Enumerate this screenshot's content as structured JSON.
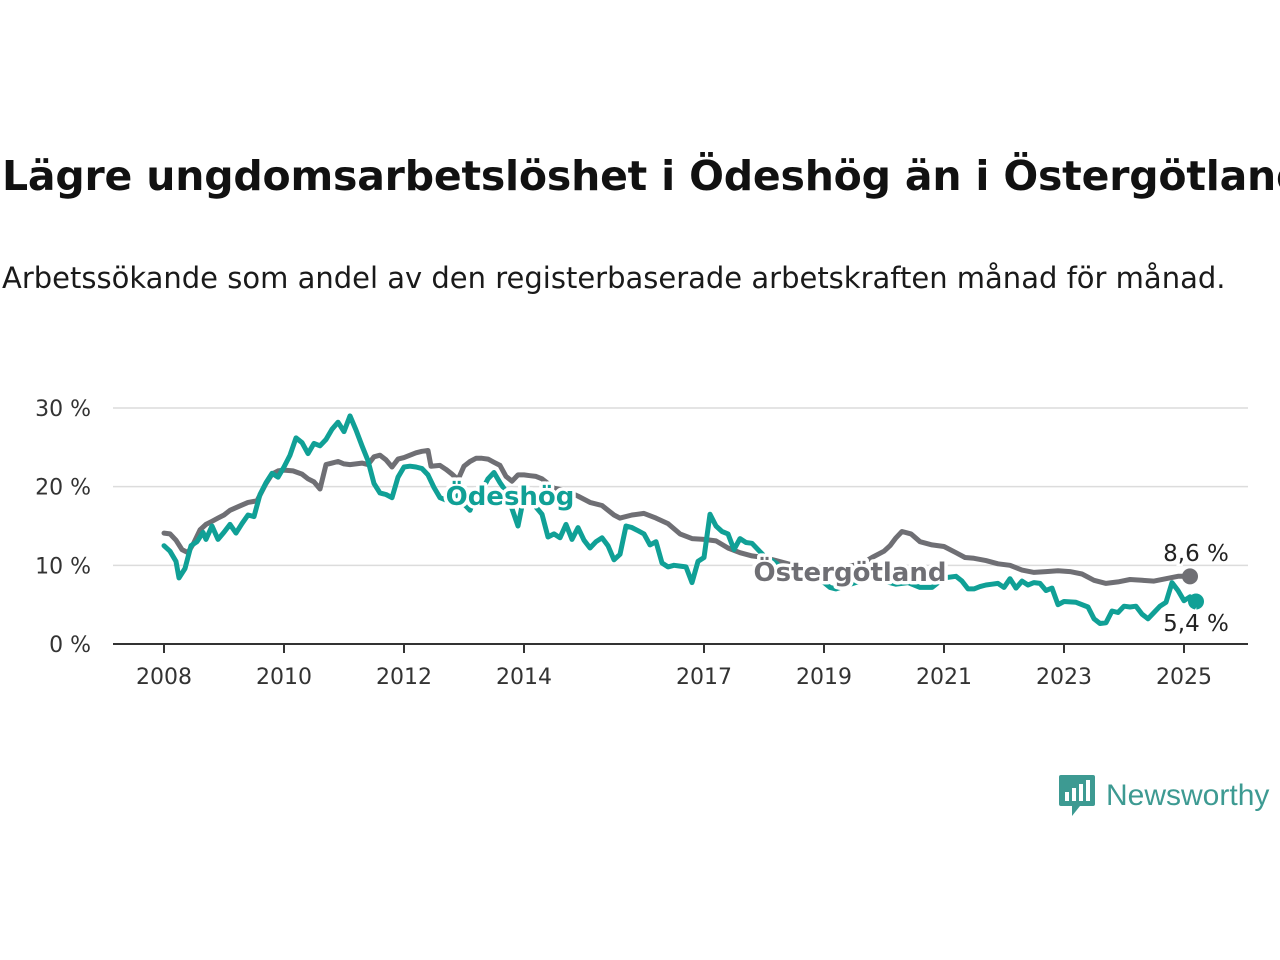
{
  "title": "Lägre ungdomsarbetslöshet i Ödeshög än i Östergötland",
  "subtitle": "Arbetssökande som andel av den registerbaserade arbetskraften månad för månad.",
  "brand": {
    "name": "Newsworthy",
    "icon": "newsworthy-logo-icon",
    "color": "#3d9a92"
  },
  "chart_data": {
    "type": "line",
    "x_range": [
      2008.0,
      2025.2
    ],
    "ylim": [
      0,
      30
    ],
    "y_ticks": [
      {
        "value": 0,
        "label": "0 %"
      },
      {
        "value": 10,
        "label": "10 %"
      },
      {
        "value": 20,
        "label": "20 %"
      },
      {
        "value": 30,
        "label": "30 %"
      }
    ],
    "x_ticks": [
      {
        "value": 2008,
        "label": "2008"
      },
      {
        "value": 2010,
        "label": "2010"
      },
      {
        "value": 2012,
        "label": "2012"
      },
      {
        "value": 2014,
        "label": "2014"
      },
      {
        "value": 2017,
        "label": "2017"
      },
      {
        "value": 2019,
        "label": "2019"
      },
      {
        "value": 2021,
        "label": "2021"
      },
      {
        "value": 2023,
        "label": "2023"
      },
      {
        "value": 2025,
        "label": "2025"
      }
    ],
    "grid": "horizontal",
    "series": [
      {
        "name": "Östergötland",
        "color": "#6f6f74",
        "end_label": "8,6 %",
        "points": [
          [
            2008.0,
            14.1
          ],
          [
            2008.1,
            14.0
          ],
          [
            2008.2,
            13.2
          ],
          [
            2008.3,
            12.0
          ],
          [
            2008.4,
            11.6
          ],
          [
            2008.5,
            12.9
          ],
          [
            2008.6,
            14.5
          ],
          [
            2008.7,
            15.2
          ],
          [
            2008.8,
            15.6
          ],
          [
            2008.9,
            16.0
          ],
          [
            2009.0,
            16.4
          ],
          [
            2009.1,
            17.0
          ],
          [
            2009.25,
            17.5
          ],
          [
            2009.4,
            18.0
          ],
          [
            2009.55,
            18.2
          ],
          [
            2009.7,
            20.4
          ],
          [
            2009.8,
            21.6
          ],
          [
            2009.9,
            22.0
          ],
          [
            2010.0,
            22.1
          ],
          [
            2010.15,
            22.0
          ],
          [
            2010.3,
            21.6
          ],
          [
            2010.4,
            21.0
          ],
          [
            2010.5,
            20.6
          ],
          [
            2010.6,
            19.7
          ],
          [
            2010.7,
            22.8
          ],
          [
            2010.8,
            23.0
          ],
          [
            2010.9,
            23.2
          ],
          [
            2011.0,
            22.9
          ],
          [
            2011.1,
            22.8
          ],
          [
            2011.2,
            22.9
          ],
          [
            2011.3,
            23.0
          ],
          [
            2011.4,
            22.8
          ],
          [
            2011.5,
            23.8
          ],
          [
            2011.6,
            24.0
          ],
          [
            2011.7,
            23.4
          ],
          [
            2011.8,
            22.5
          ],
          [
            2011.9,
            23.5
          ],
          [
            2012.0,
            23.7
          ],
          [
            2012.1,
            24.0
          ],
          [
            2012.2,
            24.3
          ],
          [
            2012.3,
            24.5
          ],
          [
            2012.4,
            24.6
          ],
          [
            2012.45,
            22.6
          ],
          [
            2012.6,
            22.7
          ],
          [
            2012.7,
            22.2
          ],
          [
            2012.8,
            21.6
          ],
          [
            2012.9,
            20.9
          ],
          [
            2013.0,
            22.6
          ],
          [
            2013.1,
            23.2
          ],
          [
            2013.2,
            23.6
          ],
          [
            2013.3,
            23.6
          ],
          [
            2013.4,
            23.5
          ],
          [
            2013.5,
            23.1
          ],
          [
            2013.6,
            22.7
          ],
          [
            2013.7,
            21.3
          ],
          [
            2013.8,
            20.7
          ],
          [
            2013.9,
            21.5
          ],
          [
            2014.0,
            21.5
          ],
          [
            2014.1,
            21.4
          ],
          [
            2014.2,
            21.3
          ],
          [
            2014.3,
            21.0
          ],
          [
            2014.5,
            19.8
          ],
          [
            2014.7,
            19.5
          ],
          [
            2014.9,
            18.8
          ],
          [
            2015.1,
            18.0
          ],
          [
            2015.3,
            17.6
          ],
          [
            2015.5,
            16.4
          ],
          [
            2015.6,
            16.0
          ],
          [
            2015.8,
            16.4
          ],
          [
            2016.0,
            16.6
          ],
          [
            2016.2,
            16.0
          ],
          [
            2016.4,
            15.3
          ],
          [
            2016.6,
            14.0
          ],
          [
            2016.8,
            13.4
          ],
          [
            2017.0,
            13.3
          ],
          [
            2017.2,
            13.1
          ],
          [
            2017.4,
            12.2
          ],
          [
            2017.6,
            11.6
          ],
          [
            2017.8,
            11.2
          ],
          [
            2018.0,
            11.0
          ],
          [
            2018.2,
            10.6
          ],
          [
            2018.4,
            10.2
          ],
          [
            2018.6,
            9.8
          ],
          [
            2018.8,
            9.4
          ],
          [
            2019.0,
            9.3
          ],
          [
            2019.2,
            9.6
          ],
          [
            2019.4,
            9.9
          ],
          [
            2019.6,
            10.1
          ],
          [
            2019.8,
            11.0
          ],
          [
            2020.0,
            11.8
          ],
          [
            2020.1,
            12.5
          ],
          [
            2020.2,
            13.5
          ],
          [
            2020.3,
            14.3
          ],
          [
            2020.45,
            14.0
          ],
          [
            2020.6,
            13.0
          ],
          [
            2020.8,
            12.6
          ],
          [
            2021.0,
            12.4
          ],
          [
            2021.2,
            11.6
          ],
          [
            2021.35,
            11.0
          ],
          [
            2021.5,
            10.9
          ],
          [
            2021.7,
            10.6
          ],
          [
            2021.9,
            10.2
          ],
          [
            2022.1,
            10.0
          ],
          [
            2022.3,
            9.4
          ],
          [
            2022.5,
            9.1
          ],
          [
            2022.7,
            9.2
          ],
          [
            2022.9,
            9.3
          ],
          [
            2023.1,
            9.2
          ],
          [
            2023.3,
            8.9
          ],
          [
            2023.5,
            8.1
          ],
          [
            2023.7,
            7.7
          ],
          [
            2023.9,
            7.9
          ],
          [
            2024.1,
            8.2
          ],
          [
            2024.3,
            8.1
          ],
          [
            2024.5,
            8.0
          ],
          [
            2024.7,
            8.3
          ],
          [
            2024.9,
            8.6
          ],
          [
            2025.1,
            8.6
          ]
        ]
      },
      {
        "name": "Ödeshög",
        "color": "#10a096",
        "end_label": "5,4 %",
        "points": [
          [
            2008.0,
            12.5
          ],
          [
            2008.1,
            11.8
          ],
          [
            2008.2,
            10.5
          ],
          [
            2008.25,
            8.4
          ],
          [
            2008.35,
            9.6
          ],
          [
            2008.45,
            12.5
          ],
          [
            2008.55,
            13.0
          ],
          [
            2008.65,
            14.2
          ],
          [
            2008.7,
            13.3
          ],
          [
            2008.8,
            15.0
          ],
          [
            2008.9,
            13.3
          ],
          [
            2009.0,
            14.2
          ],
          [
            2009.1,
            15.2
          ],
          [
            2009.2,
            14.1
          ],
          [
            2009.3,
            15.3
          ],
          [
            2009.4,
            16.4
          ],
          [
            2009.5,
            16.2
          ],
          [
            2009.6,
            19.0
          ],
          [
            2009.7,
            20.5
          ],
          [
            2009.8,
            21.7
          ],
          [
            2009.9,
            21.2
          ],
          [
            2010.0,
            22.5
          ],
          [
            2010.1,
            24.0
          ],
          [
            2010.2,
            26.2
          ],
          [
            2010.3,
            25.6
          ],
          [
            2010.4,
            24.2
          ],
          [
            2010.5,
            25.5
          ],
          [
            2010.6,
            25.2
          ],
          [
            2010.7,
            26.0
          ],
          [
            2010.8,
            27.3
          ],
          [
            2010.9,
            28.2
          ],
          [
            2011.0,
            27.0
          ],
          [
            2011.1,
            29.0
          ],
          [
            2011.2,
            27.2
          ],
          [
            2011.3,
            25.2
          ],
          [
            2011.4,
            23.3
          ],
          [
            2011.5,
            20.4
          ],
          [
            2011.6,
            19.2
          ],
          [
            2011.7,
            19.0
          ],
          [
            2011.8,
            18.6
          ],
          [
            2011.9,
            21.2
          ],
          [
            2012.0,
            22.5
          ],
          [
            2012.1,
            22.6
          ],
          [
            2012.2,
            22.5
          ],
          [
            2012.3,
            22.3
          ],
          [
            2012.4,
            21.5
          ],
          [
            2012.5,
            19.9
          ],
          [
            2012.6,
            18.6
          ],
          [
            2012.7,
            18.3
          ],
          [
            2012.8,
            18.2
          ],
          [
            2012.9,
            18.9
          ],
          [
            2013.0,
            17.8
          ],
          [
            2013.1,
            17.0
          ],
          [
            2013.2,
            19.1
          ],
          [
            2013.3,
            19.5
          ],
          [
            2013.4,
            21.0
          ],
          [
            2013.5,
            21.8
          ],
          [
            2013.6,
            20.5
          ],
          [
            2013.7,
            19.4
          ],
          [
            2013.8,
            17.2
          ],
          [
            2013.9,
            15.0
          ],
          [
            2014.0,
            18.8
          ],
          [
            2014.1,
            18.9
          ],
          [
            2014.2,
            17.4
          ],
          [
            2014.3,
            16.5
          ],
          [
            2014.4,
            13.6
          ],
          [
            2014.5,
            14.0
          ],
          [
            2014.6,
            13.5
          ],
          [
            2014.7,
            15.2
          ],
          [
            2014.8,
            13.3
          ],
          [
            2014.9,
            14.8
          ],
          [
            2015.0,
            13.2
          ],
          [
            2015.1,
            12.2
          ],
          [
            2015.2,
            13.0
          ],
          [
            2015.3,
            13.5
          ],
          [
            2015.4,
            12.5
          ],
          [
            2015.5,
            10.7
          ],
          [
            2015.6,
            11.4
          ],
          [
            2015.7,
            15.0
          ],
          [
            2015.8,
            14.8
          ],
          [
            2015.9,
            14.4
          ],
          [
            2016.0,
            14.0
          ],
          [
            2016.1,
            12.6
          ],
          [
            2016.2,
            13.0
          ],
          [
            2016.3,
            10.3
          ],
          [
            2016.4,
            9.8
          ],
          [
            2016.5,
            10.0
          ],
          [
            2016.6,
            9.9
          ],
          [
            2016.7,
            9.8
          ],
          [
            2016.8,
            7.8
          ],
          [
            2016.9,
            10.5
          ],
          [
            2017.0,
            11.0
          ],
          [
            2017.1,
            16.5
          ],
          [
            2017.2,
            15.0
          ],
          [
            2017.3,
            14.3
          ],
          [
            2017.4,
            14.0
          ],
          [
            2017.5,
            12.0
          ],
          [
            2017.6,
            13.4
          ],
          [
            2017.7,
            12.9
          ],
          [
            2017.8,
            12.8
          ],
          [
            2018.0,
            11.2
          ],
          [
            2018.2,
            10.3
          ],
          [
            2018.4,
            9.0
          ],
          [
            2018.6,
            9.3
          ],
          [
            2018.8,
            8.9
          ],
          [
            2019.0,
            7.8
          ],
          [
            2019.1,
            7.2
          ],
          [
            2019.2,
            7.0
          ],
          [
            2019.4,
            7.5
          ],
          [
            2019.6,
            8.0
          ],
          [
            2019.8,
            8.9
          ],
          [
            2020.0,
            8.0
          ],
          [
            2020.2,
            7.6
          ],
          [
            2020.4,
            7.8
          ],
          [
            2020.6,
            7.2
          ],
          [
            2020.8,
            7.2
          ],
          [
            2021.0,
            8.4
          ],
          [
            2021.2,
            8.6
          ],
          [
            2021.3,
            8.0
          ],
          [
            2021.4,
            7.0
          ],
          [
            2021.5,
            7.0
          ],
          [
            2021.6,
            7.3
          ],
          [
            2021.7,
            7.5
          ],
          [
            2021.8,
            7.6
          ],
          [
            2021.9,
            7.7
          ],
          [
            2022.0,
            7.2
          ],
          [
            2022.1,
            8.3
          ],
          [
            2022.2,
            7.1
          ],
          [
            2022.3,
            8.0
          ],
          [
            2022.4,
            7.5
          ],
          [
            2022.5,
            7.8
          ],
          [
            2022.6,
            7.7
          ],
          [
            2022.7,
            6.8
          ],
          [
            2022.8,
            7.1
          ],
          [
            2022.9,
            5.0
          ],
          [
            2023.0,
            5.4
          ],
          [
            2023.2,
            5.3
          ],
          [
            2023.4,
            4.7
          ],
          [
            2023.5,
            3.2
          ],
          [
            2023.6,
            2.6
          ],
          [
            2023.7,
            2.7
          ],
          [
            2023.8,
            4.2
          ],
          [
            2023.9,
            4.0
          ],
          [
            2024.0,
            4.8
          ],
          [
            2024.1,
            4.7
          ],
          [
            2024.2,
            4.8
          ],
          [
            2024.3,
            3.8
          ],
          [
            2024.4,
            3.2
          ],
          [
            2024.5,
            4.0
          ],
          [
            2024.6,
            4.8
          ],
          [
            2024.7,
            5.3
          ],
          [
            2024.8,
            7.8
          ],
          [
            2024.9,
            6.8
          ],
          [
            2025.0,
            5.5
          ],
          [
            2025.1,
            6.0
          ],
          [
            2025.2,
            5.4
          ]
        ]
      }
    ]
  }
}
